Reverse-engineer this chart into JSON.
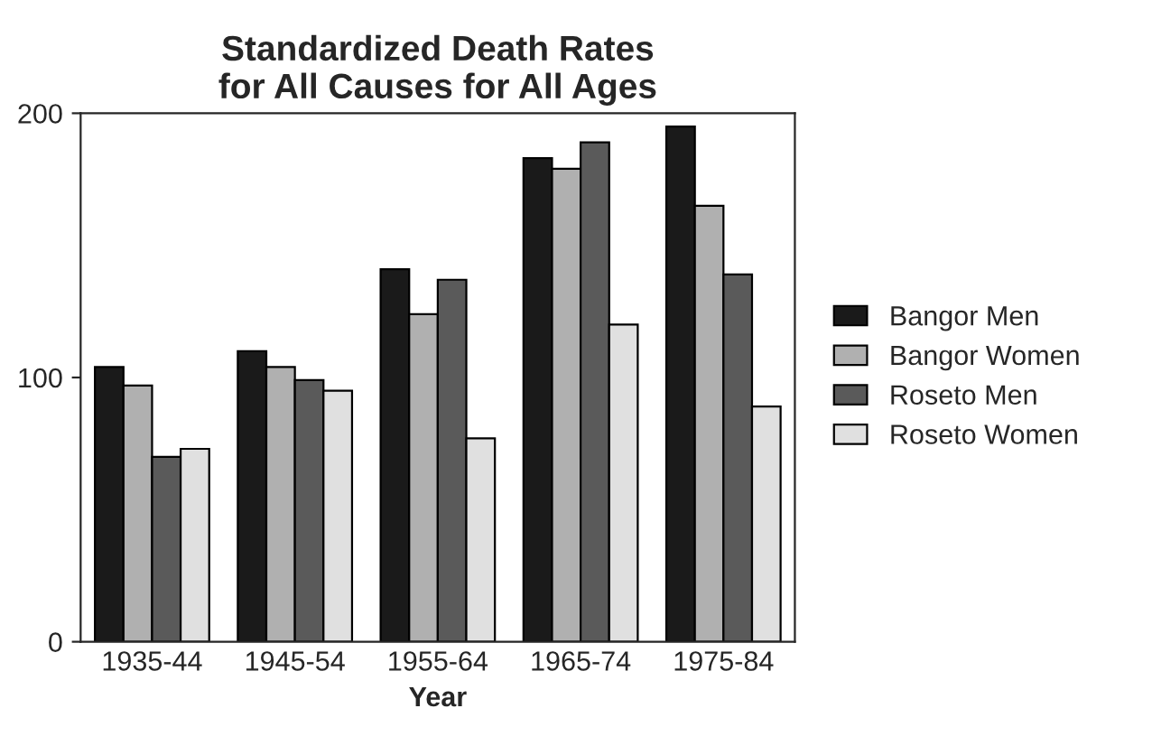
{
  "chart_data": {
    "type": "bar",
    "title": "Standardized Death Rates\nfor All Causes for All Ages",
    "xlabel": "Year",
    "categories": [
      "1935-44",
      "1945-54",
      "1955-64",
      "1965-74",
      "1975-84"
    ],
    "series": [
      {
        "name": "Bangor Men",
        "color": "#1a1a1a",
        "values": [
          104,
          110,
          141,
          183,
          195
        ]
      },
      {
        "name": "Bangor Women",
        "color": "#b0b0b0",
        "values": [
          97,
          104,
          124,
          179,
          165
        ]
      },
      {
        "name": "Roseto Men",
        "color": "#5a5a5a",
        "values": [
          70,
          99,
          137,
          189,
          139
        ]
      },
      {
        "name": "Roseto Women",
        "color": "#e0e0e0",
        "values": [
          73,
          95,
          77,
          120,
          89
        ]
      }
    ],
    "ylim": [
      0,
      200
    ],
    "yticks": [
      0,
      100,
      200
    ],
    "grid": false,
    "legend": "right"
  }
}
